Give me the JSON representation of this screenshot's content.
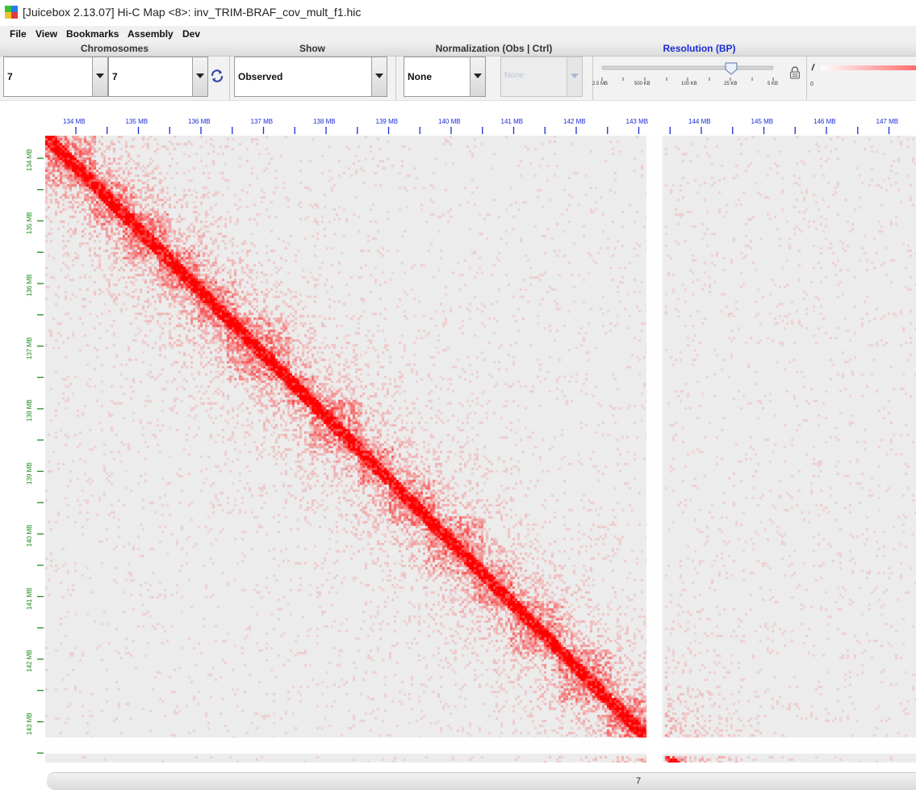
{
  "window": {
    "title": "[Juicebox 2.13.07] Hi-C Map <8>: inv_TRIM-BRAF_cov_mult_f1.hic",
    "icon": "juicebox-app-icon"
  },
  "menu": {
    "items": [
      "File",
      "View",
      "Bookmarks",
      "Assembly",
      "Dev"
    ]
  },
  "toolbar": {
    "chromosomes": {
      "header": "Chromosomes",
      "chr1": "7",
      "chr2": "7",
      "refresh_icon": "refresh-icon"
    },
    "show": {
      "header": "Show",
      "value": "Observed"
    },
    "normalization": {
      "header": "Normalization  (Obs  |  Ctrl)",
      "obs": "None",
      "ctrl": "None"
    },
    "resolution": {
      "header": "Resolution (BP)",
      "ticks": [
        "2.5 MB",
        "500 KB",
        "100 KB",
        "25 KB",
        "5 KB"
      ],
      "selected": "25 KB",
      "lock_icon": "lock-icon"
    },
    "color_scale": {
      "min_label": "0",
      "accent": "#ff0000"
    }
  },
  "map": {
    "x_axis_labels": [
      "134 MB",
      "135 MB",
      "136 MB",
      "137 MB",
      "138 MB",
      "139 MB",
      "140 MB",
      "141 MB",
      "142 MB",
      "143 MB",
      "144 MB",
      "145 MB",
      "146 MB",
      "147 MB"
    ],
    "y_axis_labels": [
      "134 MB",
      "135 MB",
      "136 MB",
      "137 MB",
      "138 MB",
      "139 MB",
      "140 MB",
      "141 MB",
      "142 MB",
      "143 MB"
    ],
    "background_color": "#ececec",
    "contact_color": "#ff0000",
    "chromosome_label": "7"
  }
}
